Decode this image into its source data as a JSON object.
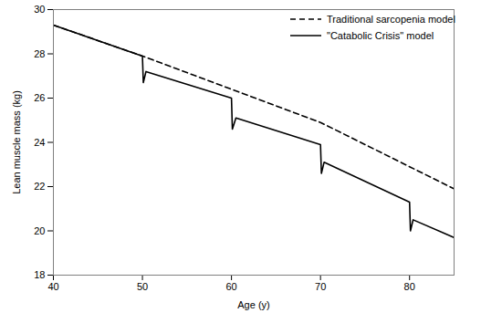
{
  "chart_data": {
    "type": "line",
    "x_label": "Age (y)",
    "y_label": "Lean muscle mass (kg)",
    "xlim": [
      40,
      85
    ],
    "xticks": [
      40,
      50,
      60,
      70,
      80
    ],
    "ylim": [
      18,
      30
    ],
    "yticks": [
      18,
      20,
      22,
      24,
      26,
      28,
      30
    ],
    "grid": false,
    "legend": "upper right",
    "series": [
      {
        "name": "Traditional sarcopenia model",
        "color": "#000000",
        "line_style": "dashed",
        "x": [
          40,
          50,
          60,
          70,
          80,
          85
        ],
        "values": [
          29.3,
          27.9,
          26.4,
          24.9,
          22.9,
          21.9
        ]
      },
      {
        "name": "\"Catabolic Crisis\" model",
        "color": "#000000",
        "line_style": "solid",
        "x": [
          40,
          50,
          50.1,
          50.4,
          60,
          60.1,
          60.5,
          70,
          70.1,
          70.4,
          80,
          80.1,
          80.4,
          85
        ],
        "values": [
          29.3,
          27.9,
          26.7,
          27.2,
          26.0,
          24.6,
          25.1,
          23.9,
          22.6,
          23.1,
          21.3,
          20.0,
          20.5,
          19.7
        ]
      }
    ]
  }
}
